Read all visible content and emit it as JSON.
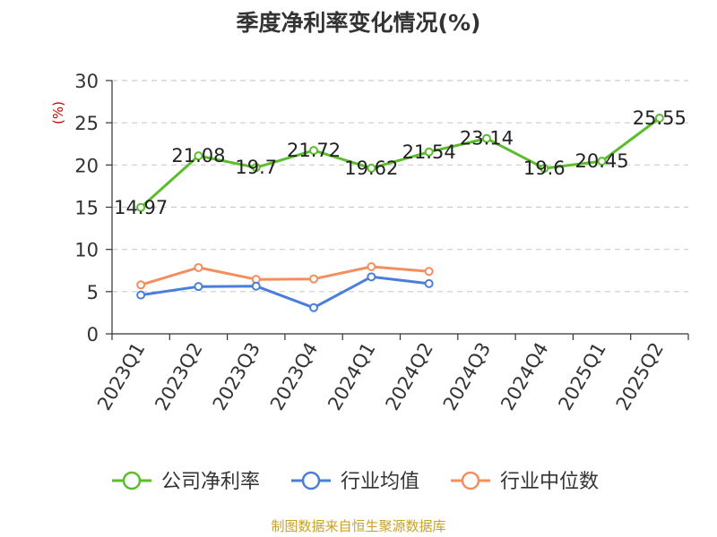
{
  "chart_data": {
    "type": "line",
    "title": "季度净利率变化情况(%)",
    "ylabel": "(%)",
    "xlabel": "",
    "ylim": [
      0,
      30
    ],
    "yticks": [
      0,
      5,
      10,
      15,
      20,
      25,
      30
    ],
    "categories": [
      "2023Q1",
      "2023Q2",
      "2023Q3",
      "2023Q4",
      "2024Q1",
      "2024Q2",
      "2024Q3",
      "2024Q4",
      "2025Q1",
      "2025Q2"
    ],
    "grid": true,
    "legend_position": "bottom",
    "series": [
      {
        "name": "公司净利率",
        "color": "#5bbd2b",
        "show_labels": true,
        "values": [
          14.97,
          21.08,
          19.7,
          21.72,
          19.62,
          21.54,
          23.14,
          19.6,
          20.45,
          25.55
        ],
        "value_labels": [
          "14.97",
          "21.08",
          "19.7",
          "21.72",
          "19.62",
          "21.54",
          "23.14",
          "19.6",
          "20.45",
          "25.55"
        ]
      },
      {
        "name": "行业均值",
        "color": "#4a7fd9",
        "show_labels": false,
        "values": [
          4.6,
          5.6,
          5.65,
          3.1,
          6.75,
          5.95,
          null,
          null,
          null,
          null
        ]
      },
      {
        "name": "行业中位数",
        "color": "#f58e5e",
        "show_labels": false,
        "values": [
          5.8,
          7.85,
          6.45,
          6.5,
          7.95,
          7.4,
          null,
          null,
          null,
          null
        ]
      }
    ]
  },
  "footer": {
    "source": "制图数据来自恒生聚源数据库"
  }
}
